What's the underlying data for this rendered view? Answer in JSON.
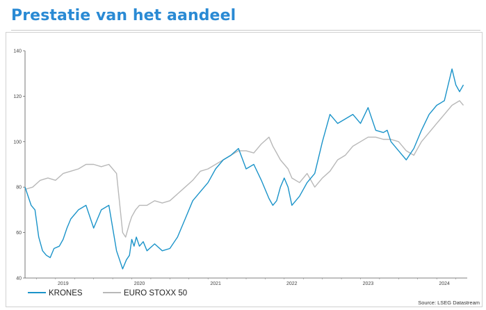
{
  "page": {
    "title": "Prestatie van het aandeel",
    "source": "Source: LSEG Datastream"
  },
  "colors": {
    "title": "#2a8ad4",
    "krones": "#1a93c9",
    "stoxx": "#b8b8b8"
  },
  "chart_data": {
    "type": "line",
    "xlabel": "",
    "ylabel": "",
    "ylim": [
      40,
      140
    ],
    "yticks": [
      40,
      60,
      80,
      100,
      120,
      140
    ],
    "x_tick_labels": [
      "2019",
      "2020",
      "2021",
      "2022",
      "2023",
      "2024"
    ],
    "x_tick_pos": [
      2019.1,
      2020.1,
      2021.1,
      2022.1,
      2023.1,
      2024.1
    ],
    "xlim": [
      2018.6,
      2024.4
    ],
    "grid": false,
    "legend_position": "bottom-left",
    "series": [
      {
        "name": "KRONES",
        "color": "#1a93c9",
        "x": [
          2018.6,
          2018.68,
          2018.73,
          2018.78,
          2018.83,
          2018.88,
          2018.93,
          2018.98,
          2019.05,
          2019.1,
          2019.15,
          2019.2,
          2019.3,
          2019.4,
          2019.5,
          2019.6,
          2019.7,
          2019.8,
          2019.88,
          2019.93,
          2019.97,
          2020.0,
          2020.03,
          2020.06,
          2020.1,
          2020.15,
          2020.2,
          2020.3,
          2020.4,
          2020.5,
          2020.6,
          2020.7,
          2020.8,
          2020.9,
          2021.0,
          2021.1,
          2021.2,
          2021.3,
          2021.4,
          2021.5,
          2021.6,
          2021.7,
          2021.8,
          2021.85,
          2021.9,
          2021.95,
          2022.0,
          2022.05,
          2022.1,
          2022.2,
          2022.3,
          2022.4,
          2022.5,
          2022.6,
          2022.7,
          2022.8,
          2022.9,
          2023.0,
          2023.1,
          2023.2,
          2023.3,
          2023.35,
          2023.4,
          2023.5,
          2023.6,
          2023.7,
          2023.8,
          2023.9,
          2024.0,
          2024.1,
          2024.2,
          2024.25,
          2024.3,
          2024.35
        ],
        "values": [
          80,
          72,
          70,
          58,
          52,
          50,
          49,
          53,
          54,
          57,
          62,
          66,
          70,
          72,
          62,
          70,
          72,
          52,
          44,
          48,
          50,
          57,
          54,
          58,
          54,
          56,
          52,
          55,
          52,
          53,
          58,
          66,
          74,
          78,
          82,
          88,
          92,
          94,
          97,
          88,
          90,
          83,
          75,
          72,
          74,
          80,
          84,
          80,
          72,
          76,
          82,
          86,
          100,
          112,
          108,
          110,
          112,
          108,
          115,
          105,
          104,
          105,
          100,
          96,
          92,
          97,
          105,
          112,
          116,
          118,
          132,
          125,
          122,
          125
        ]
      },
      {
        "name": "EURO STOXX 50",
        "color": "#b8b8b8",
        "x": [
          2018.6,
          2018.7,
          2018.8,
          2018.9,
          2019.0,
          2019.1,
          2019.2,
          2019.3,
          2019.4,
          2019.5,
          2019.6,
          2019.7,
          2019.8,
          2019.88,
          2019.92,
          2019.97,
          2020.0,
          2020.05,
          2020.1,
          2020.2,
          2020.3,
          2020.4,
          2020.5,
          2020.6,
          2020.7,
          2020.8,
          2020.9,
          2021.0,
          2021.1,
          2021.2,
          2021.3,
          2021.4,
          2021.5,
          2021.6,
          2021.7,
          2021.8,
          2021.85,
          2021.9,
          2021.95,
          2022.0,
          2022.05,
          2022.1,
          2022.2,
          2022.3,
          2022.4,
          2022.5,
          2022.6,
          2022.7,
          2022.8,
          2022.9,
          2023.0,
          2023.1,
          2023.2,
          2023.3,
          2023.4,
          2023.5,
          2023.6,
          2023.7,
          2023.8,
          2023.9,
          2024.0,
          2024.1,
          2024.2,
          2024.3,
          2024.35
        ],
        "values": [
          79,
          80,
          83,
          84,
          83,
          86,
          87,
          88,
          90,
          90,
          89,
          90,
          86,
          60,
          58,
          64,
          67,
          70,
          72,
          72,
          74,
          73,
          74,
          77,
          80,
          83,
          87,
          88,
          90,
          92,
          94,
          96,
          96,
          95,
          99,
          102,
          98,
          95,
          92,
          90,
          88,
          84,
          82,
          86,
          80,
          84,
          87,
          92,
          94,
          98,
          100,
          102,
          102,
          101,
          101,
          100,
          96,
          94,
          100,
          104,
          108,
          112,
          116,
          118,
          116
        ]
      }
    ]
  }
}
